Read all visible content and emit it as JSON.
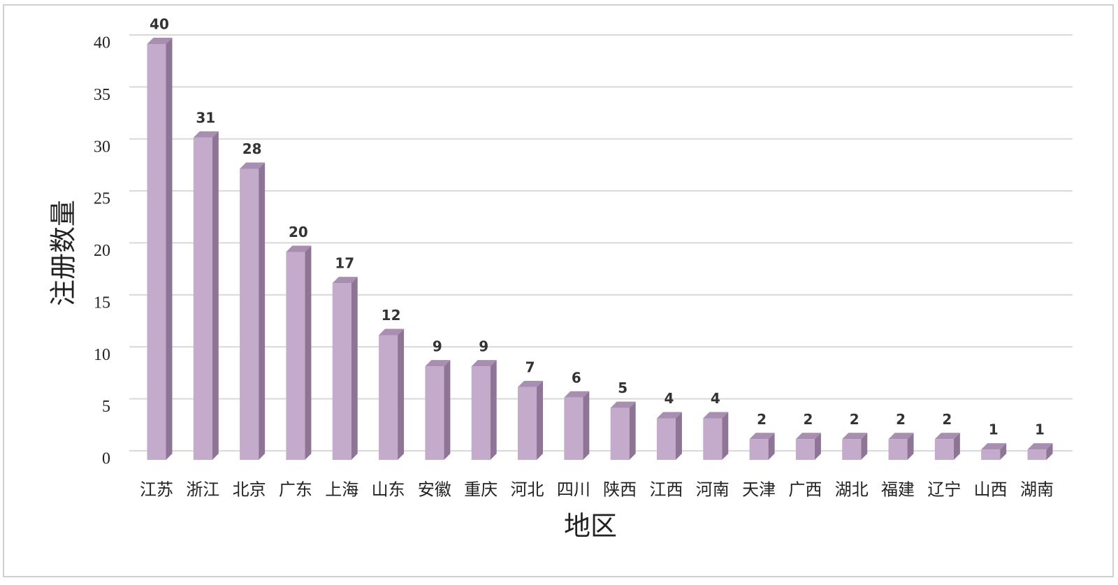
{
  "chart_data": {
    "type": "bar3d",
    "categories": [
      "江苏",
      "浙江",
      "北京",
      "广东",
      "上海",
      "山东",
      "安徽",
      "重庆",
      "河北",
      "四川",
      "陕西",
      "江西",
      "河南",
      "天津",
      "广西",
      "湖北",
      "福建",
      "辽宁",
      "山西",
      "湖南"
    ],
    "values": [
      40,
      31,
      28,
      20,
      17,
      12,
      9,
      9,
      7,
      6,
      5,
      4,
      4,
      2,
      2,
      2,
      2,
      2,
      1,
      1
    ],
    "color": "#c4aacb",
    "x_label": "地区",
    "y_label": "注册数量",
    "ylim": [
      0,
      40
    ],
    "yticks": [
      0,
      5,
      10,
      15,
      20,
      25,
      30,
      35,
      40
    ],
    "grid": true
  }
}
